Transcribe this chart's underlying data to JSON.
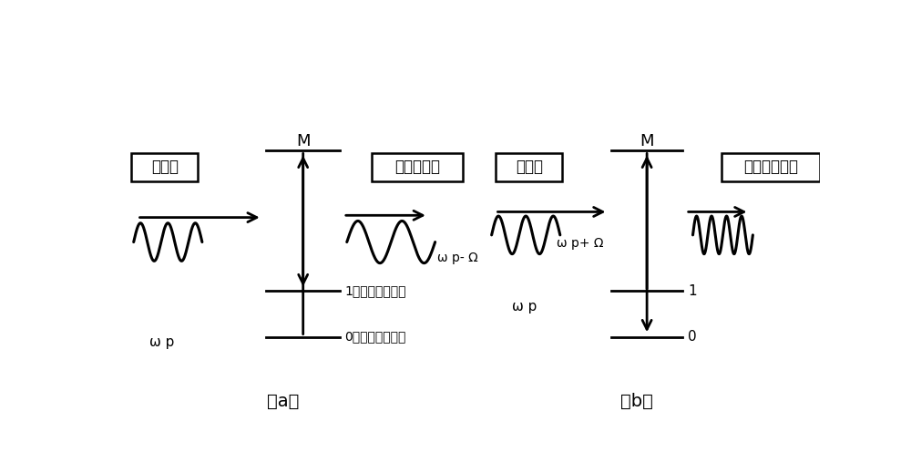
{
  "bg_color": "#ffffff",
  "line_color": "#000000",
  "label_a": "（a）",
  "label_b": "（b）",
  "panel_a": {
    "M_label": "M",
    "input_box": "入射光",
    "output_box": "斯托克斯光",
    "level0_label": "0：振动基底状态",
    "level1_label": "1：振动激发状态",
    "freq_label": "ω p- Ω",
    "omega_label": "ω p"
  },
  "panel_b": {
    "M_label": "M",
    "input_box": "入射光",
    "output_box": "反斯托克斯光",
    "level0_label": "0",
    "level1_label": "1",
    "freq_label": "ω p+ Ω",
    "omega_label": "ω p"
  }
}
